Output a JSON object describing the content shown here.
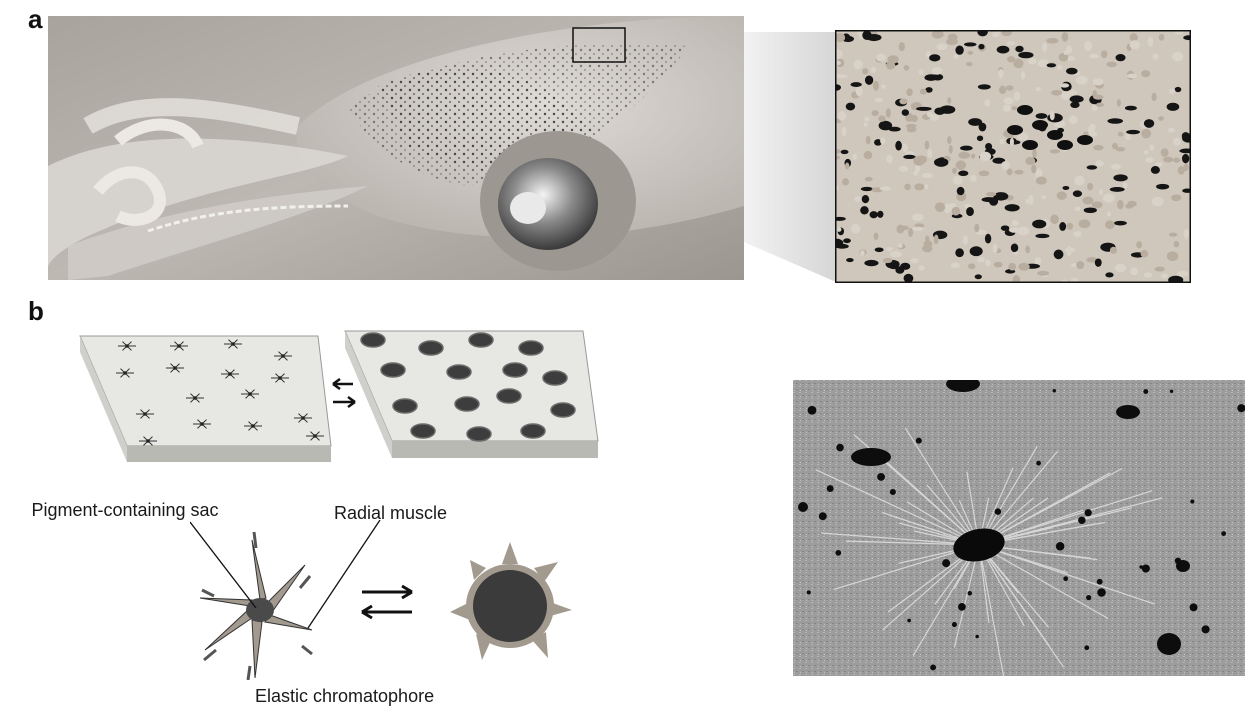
{
  "figure": {
    "panel_a": {
      "letter": "a"
    },
    "panel_b": {
      "letter": "b",
      "labels": {
        "pigment_sac": "Pigment-containing sac",
        "radial_muscle": "Radial muscle",
        "elastic_chromatophore": "Elastic chromatophore"
      }
    },
    "colors": {
      "squid_skin": "#b9b4ae",
      "zoom_bg": "#cfc7bc",
      "chromatophore_dark": "#1a1a1a",
      "slab_top": "#e7e7e3",
      "slab_side": "#b9b9b4",
      "muscle_fill": "#a39a8f",
      "sem_bg": "#9a9a9a"
    }
  }
}
